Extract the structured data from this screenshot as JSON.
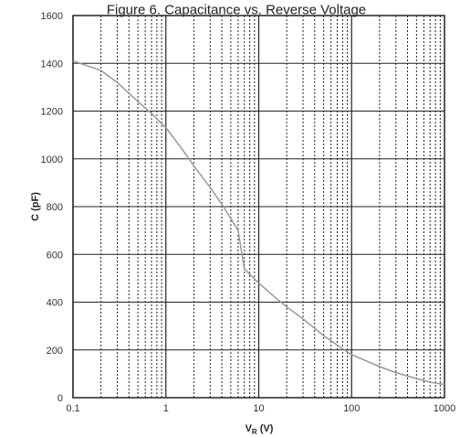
{
  "chart_data": {
    "type": "line",
    "title": "Figure 6. Capacitance vs. Reverse Voltage",
    "xlabel": {
      "main": "V",
      "sub": "R",
      "unit": " (V)"
    },
    "ylabel": "C (pF)",
    "x_scale": "log",
    "xlim": [
      0.1,
      1000
    ],
    "ylim": [
      0,
      1600
    ],
    "x_ticks": [
      0.1,
      1,
      10,
      100,
      1000
    ],
    "x_tick_labels": [
      "0.1",
      "1",
      "10",
      "100",
      "1000"
    ],
    "y_ticks": [
      0,
      200,
      400,
      600,
      800,
      1000,
      1200,
      1400,
      1600
    ],
    "y_tick_labels": [
      "0",
      "200",
      "400",
      "600",
      "800",
      "1000",
      "1200",
      "1400",
      "1600"
    ],
    "grid": true,
    "legend": "none",
    "series": [
      {
        "color": "#999999",
        "x": [
          0.1,
          0.2,
          0.3,
          0.5,
          0.7,
          1,
          1.5,
          2,
          3,
          4,
          5,
          6,
          7,
          10,
          15,
          20,
          30,
          50,
          70,
          100,
          200,
          300,
          500,
          700,
          1000
        ],
        "y": [
          1410,
          1370,
          1320,
          1240,
          1190,
          1130,
          1040,
          970,
          880,
          810,
          750,
          700,
          540,
          480,
          420,
          380,
          330,
          260,
          220,
          180,
          130,
          105,
          80,
          65,
          55
        ]
      }
    ]
  }
}
